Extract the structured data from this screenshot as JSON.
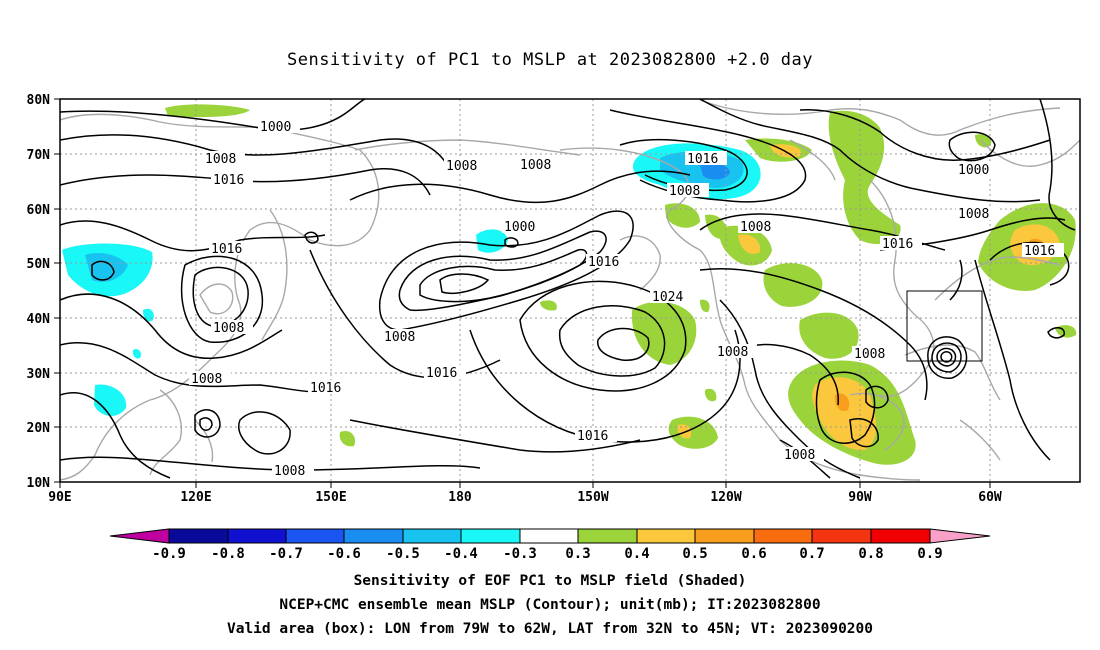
{
  "title": "Sensitivity of PC1 to MSLP at 2023082800 +2.0 day",
  "lat_labels": [
    "80N",
    "70N",
    "60N",
    "50N",
    "40N",
    "30N",
    "20N",
    "10N"
  ],
  "lon_labels": [
    "90E",
    "120E",
    "150E",
    "180",
    "150W",
    "120W",
    "90W",
    "60W"
  ],
  "contour_labels": {
    "c1000a": "1000",
    "c1000b": "1000",
    "c1000c": "1000",
    "c1008a": "1008",
    "c1008b": "1008",
    "c1008c": "1008",
    "c1008d": "1008",
    "c1008e": "1008",
    "c1008f": "1008",
    "c1008g": "1008",
    "c1008h": "1008",
    "c1008i": "1008",
    "c1008j": "1008",
    "c1008k": "1008",
    "c1016a": "1016",
    "c1016b": "1016",
    "c1016c": "1016",
    "c1016d": "1016",
    "c1016e": "1016",
    "c1016f": "1016",
    "c1016g": "1016",
    "c1016h": "1016",
    "c1024": "1024"
  },
  "colorbar": {
    "labels": [
      "-0.9",
      "-0.8",
      "-0.7",
      "-0.6",
      "-0.5",
      "-0.4",
      "-0.3",
      "0.3",
      "0.4",
      "0.5",
      "0.6",
      "0.7",
      "0.8",
      "0.9"
    ],
    "colors": [
      "#c000a0",
      "#0a0a9a",
      "#1010d0",
      "#1a55f0",
      "#1a8ef0",
      "#19c3f0",
      "#19f7f7",
      "#ffffff",
      "#9bd33a",
      "#fbc73d",
      "#f99d1c",
      "#f96d11",
      "#f23410",
      "#f00000",
      "#f8a0c8"
    ]
  },
  "captions": [
    "Sensitivity of EOF PC1 to MSLP field (Shaded)",
    "NCEP+CMC ensemble mean MSLP (Contour); unit(mb); IT:2023082800",
    "Valid area (box): LON from 79W to 62W, LAT from 32N to 45N; VT: 2023090200"
  ],
  "colors": {
    "coast": "#a8a8a8",
    "contour": "#000000",
    "grid": "#9a9a9a"
  }
}
